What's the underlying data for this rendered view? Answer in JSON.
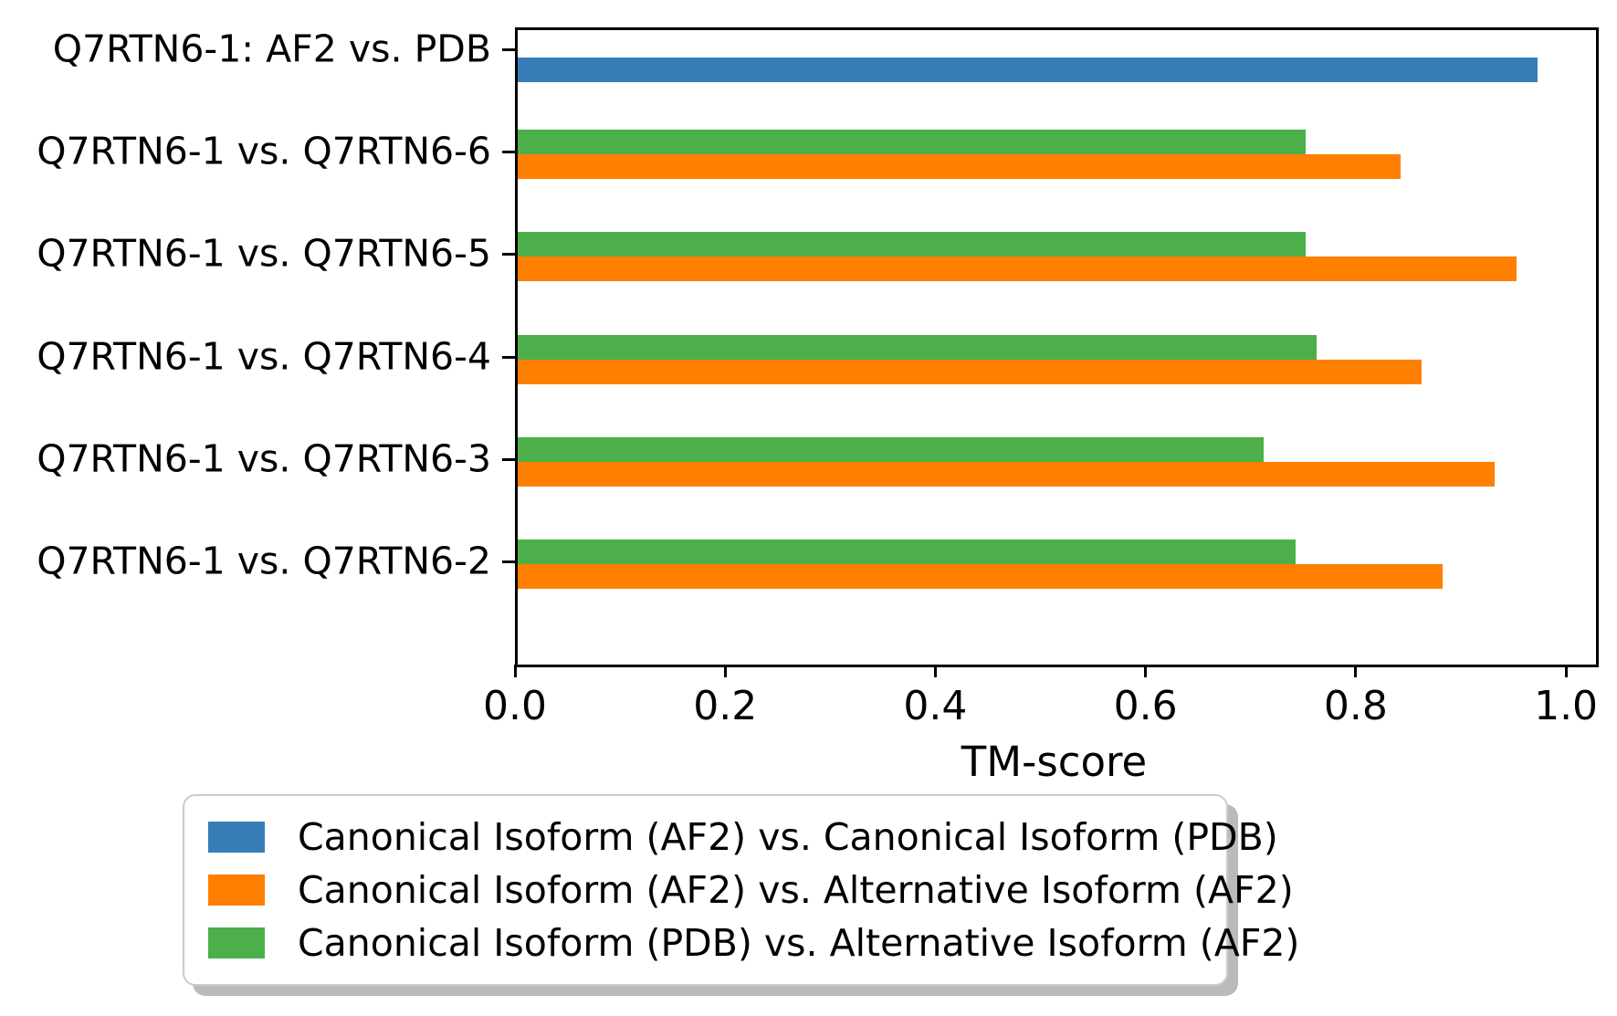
{
  "chart_data": {
    "type": "bar",
    "orientation": "horizontal",
    "title": "",
    "xlabel": "TM-score",
    "ylabel": "",
    "xlim": [
      0,
      1.026
    ],
    "xticks": [
      "0.0",
      "0.2",
      "0.4",
      "0.6",
      "0.8",
      "1.0"
    ],
    "xtick_values": [
      0.0,
      0.2,
      0.4,
      0.6,
      0.8,
      1.0
    ],
    "grid": false,
    "legend_position": "below-plot",
    "series": {
      "af2_vs_pdb": {
        "label": "Canonical Isoform (AF2) vs. Canonical Isoform (PDB)",
        "color": "#377eb8"
      },
      "af2_vs_alt": {
        "label": "Canonical Isoform (AF2) vs. Alternative Isoform (AF2)",
        "color": "#ff7f00"
      },
      "pdb_vs_alt": {
        "label": "Canonical Isoform (PDB) vs. Alternative Isoform (AF2)",
        "color": "#4daf4a"
      }
    },
    "legend_order": [
      "af2_vs_pdb",
      "af2_vs_alt",
      "pdb_vs_alt"
    ],
    "rows": [
      {
        "label": "Q7RTN6-1: AF2 vs. PDB",
        "bars": [
          {
            "series": "af2_vs_pdb",
            "value": 0.97
          }
        ]
      },
      {
        "label": "Q7RTN6-1 vs. Q7RTN6-6",
        "bars": [
          {
            "series": "pdb_vs_alt",
            "value": 0.75
          },
          {
            "series": "af2_vs_alt",
            "value": 0.84
          }
        ]
      },
      {
        "label": "Q7RTN6-1 vs. Q7RTN6-5",
        "bars": [
          {
            "series": "pdb_vs_alt",
            "value": 0.75
          },
          {
            "series": "af2_vs_alt",
            "value": 0.95
          }
        ]
      },
      {
        "label": "Q7RTN6-1 vs. Q7RTN6-4",
        "bars": [
          {
            "series": "pdb_vs_alt",
            "value": 0.76
          },
          {
            "series": "af2_vs_alt",
            "value": 0.86
          }
        ]
      },
      {
        "label": "Q7RTN6-1 vs. Q7RTN6-3",
        "bars": [
          {
            "series": "pdb_vs_alt",
            "value": 0.71
          },
          {
            "series": "af2_vs_alt",
            "value": 0.93
          }
        ]
      },
      {
        "label": "Q7RTN6-1 vs. Q7RTN6-2",
        "bars": [
          {
            "series": "pdb_vs_alt",
            "value": 0.74
          },
          {
            "series": "af2_vs_alt",
            "value": 0.88
          }
        ]
      }
    ]
  }
}
